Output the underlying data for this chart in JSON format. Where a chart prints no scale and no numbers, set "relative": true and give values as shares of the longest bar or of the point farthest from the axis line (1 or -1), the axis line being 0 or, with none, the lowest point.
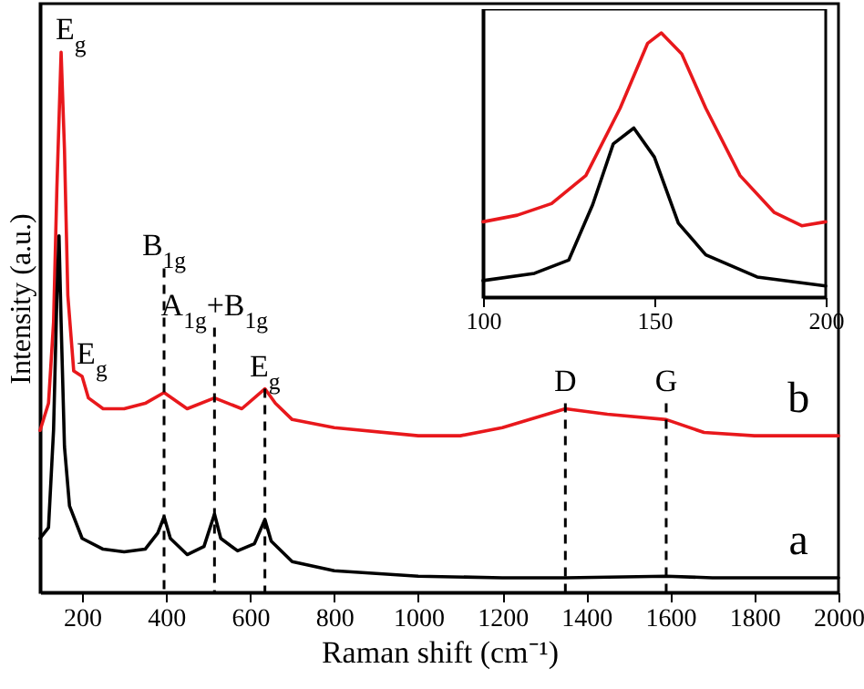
{
  "chart_data": [
    {
      "type": "line",
      "xlabel": "Raman shift (cm⁻¹)",
      "ylabel": "Intensity (a.u.)",
      "relative": true,
      "grid": false,
      "xlim": [
        100,
        2000
      ],
      "xticks": [
        200,
        400,
        600,
        800,
        1000,
        1200,
        1400,
        1600,
        1800,
        2000
      ],
      "series": [
        {
          "name": "b",
          "color": "#e8181c",
          "x": [
            100,
            120,
            132,
            140,
            150,
            158,
            166,
            180,
            200,
            215,
            250,
            300,
            350,
            395,
            450,
            515,
            580,
            635,
            660,
            700,
            800,
            1000,
            1100,
            1200,
            1350,
            1450,
            1590,
            1680,
            1800,
            2000
          ],
          "values": [
            0.3,
            0.35,
            0.5,
            0.75,
            1,
            0.82,
            0.55,
            0.41,
            0.4,
            0.36,
            0.34,
            0.34,
            0.35,
            0.37,
            0.34,
            0.36,
            0.34,
            0.377,
            0.35,
            0.32,
            0.305,
            0.29,
            0.29,
            0.305,
            0.34,
            0.33,
            0.32,
            0.296,
            0.29,
            0.29
          ]
        },
        {
          "name": "a",
          "color": "#000000",
          "x": [
            100,
            120,
            132,
            140,
            145,
            150,
            158,
            170,
            200,
            250,
            300,
            350,
            380,
            395,
            410,
            450,
            490,
            515,
            530,
            570,
            610,
            635,
            650,
            700,
            800,
            1000,
            1200,
            1350,
            1590,
            1700,
            2000
          ],
          "values": [
            0.1,
            0.12,
            0.3,
            0.55,
            0.66,
            0.5,
            0.27,
            0.16,
            0.1,
            0.08,
            0.075,
            0.08,
            0.11,
            0.14,
            0.1,
            0.07,
            0.085,
            0.145,
            0.1,
            0.077,
            0.09,
            0.135,
            0.095,
            0.057,
            0.04,
            0.03,
            0.027,
            0.027,
            0.03,
            0.027,
            0.027
          ]
        }
      ],
      "ref_lines": [
        {
          "axis": "x",
          "value": 395,
          "line_style": "dashed",
          "color": "#000000"
        },
        {
          "axis": "x",
          "value": 515,
          "line_style": "dashed",
          "color": "#000000"
        },
        {
          "axis": "x",
          "value": 635,
          "line_style": "dashed",
          "color": "#000000"
        },
        {
          "axis": "x",
          "value": 1350,
          "line_style": "dashed",
          "color": "#000000"
        },
        {
          "axis": "x",
          "value": 1590,
          "line_style": "dashed",
          "color": "#000000"
        }
      ],
      "annotations": [
        {
          "text": "E$_{g}$",
          "x": 150,
          "y": 1
        },
        {
          "text": "E$_{g}$",
          "x": 200,
          "y": 0.4
        },
        {
          "text": "B$_{1g}$",
          "x": 395,
          "y": 0.6
        },
        {
          "text": "A$_{1g}$+B$_{1g}$",
          "x": 515,
          "y": 0.49
        },
        {
          "text": "E$_{g}$",
          "x": 635,
          "y": 0.377
        },
        {
          "text": "D",
          "x": 1350,
          "y": 0.35
        },
        {
          "text": "G",
          "x": 1590,
          "y": 0.35
        }
      ]
    },
    {
      "type": "line",
      "relative": true,
      "grid": false,
      "xlim": [
        100,
        200
      ],
      "xticks": [
        100,
        150,
        200
      ],
      "series": [
        {
          "color": "#e8181c",
          "x": [
            100,
            110,
            120,
            130,
            140,
            148,
            152,
            158,
            165,
            175,
            185,
            193,
            200
          ],
          "values": [
            0.285,
            0.31,
            0.354,
            0.46,
            0.715,
            0.96,
            1,
            0.92,
            0.715,
            0.46,
            0.32,
            0.27,
            0.285
          ]
        },
        {
          "color": "#000000",
          "x": [
            100,
            115,
            125,
            132,
            138,
            144,
            150,
            157,
            165,
            180,
            200
          ],
          "values": [
            0.0625,
            0.09,
            0.14,
            0.35,
            0.58,
            0.64,
            0.53,
            0.28,
            0.16,
            0.076,
            0.042
          ]
        }
      ]
    }
  ]
}
